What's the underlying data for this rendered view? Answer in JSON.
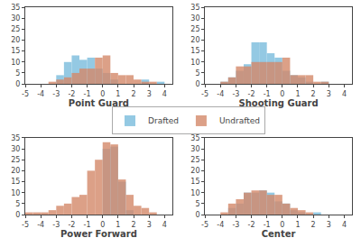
{
  "chart_data": [
    {
      "type": "histogram",
      "xlabel": "Point Guard",
      "bins": [
        -5.0,
        -4.5,
        -4.0,
        -3.5,
        -3.0,
        -2.5,
        -2.0,
        -1.5,
        -1.0,
        -0.5,
        0.0,
        0.5,
        1.0,
        1.5,
        2.0,
        2.5,
        3.0,
        3.5,
        4.0,
        4.5
      ],
      "series": [
        {
          "name": "Drafted",
          "color": "#89c4e1",
          "values": [
            0,
            0,
            0,
            0,
            4,
            10,
            13,
            11,
            12,
            7,
            5,
            2,
            0,
            0,
            0,
            2,
            0,
            1,
            0
          ]
        },
        {
          "name": "Undrafted",
          "color": "#d4896a",
          "values": [
            0,
            0,
            0,
            1,
            2,
            3,
            5,
            7,
            7,
            12,
            13,
            5,
            4,
            4,
            2,
            1,
            1,
            0,
            0
          ]
        }
      ],
      "xlim": [
        -5,
        4.5
      ],
      "ylim": [
        0,
        35
      ],
      "xticks": [
        -5,
        -4,
        -3,
        -2,
        -1,
        0,
        1,
        2,
        3,
        4
      ],
      "yticks": [
        0,
        5,
        10,
        15,
        20,
        25,
        30,
        35
      ],
      "grid": false,
      "legend": "center"
    },
    {
      "type": "histogram",
      "xlabel": "Shooting Guard",
      "bins": [
        -5.0,
        -4.5,
        -4.0,
        -3.5,
        -3.0,
        -2.5,
        -2.0,
        -1.5,
        -1.0,
        -0.5,
        0.0,
        0.5,
        1.0,
        1.5,
        2.0,
        2.5,
        3.0
      ],
      "series": [
        {
          "name": "Drafted",
          "color": "#89c4e1",
          "values": [
            0,
            0,
            1,
            3,
            6,
            9,
            19,
            19,
            14,
            12,
            6,
            4,
            3,
            1,
            0,
            1
          ]
        },
        {
          "name": "Undrafted",
          "color": "#d4896a",
          "values": [
            0,
            0,
            1,
            3,
            8,
            8,
            10,
            10,
            10,
            10,
            12,
            4,
            4,
            4,
            1,
            1
          ]
        }
      ],
      "xlim": [
        -5,
        4.5
      ],
      "ylim": [
        0,
        35
      ],
      "xticks": [
        -5,
        -4,
        -3,
        -2,
        -1,
        0,
        1,
        2,
        3,
        4
      ],
      "yticks": [
        0,
        5,
        10,
        15,
        20,
        25,
        30,
        35
      ],
      "grid": false
    },
    {
      "type": "histogram",
      "xlabel": "Power Forward",
      "bins": [
        -5.0,
        -4.5,
        -4.0,
        -3.5,
        -3.0,
        -2.5,
        -2.0,
        -1.5,
        -1.0,
        -0.5,
        0.0,
        0.5,
        1.0,
        1.5,
        2.0,
        2.5,
        3.0,
        3.5,
        4.0,
        4.5
      ],
      "series": [
        {
          "name": "Drafted",
          "color": "#89c4e1",
          "values": [
            0,
            0,
            0,
            0,
            0,
            0,
            0,
            0,
            0,
            0,
            30,
            31,
            15,
            2,
            0,
            0,
            0,
            0,
            0
          ]
        },
        {
          "name": "Undrafted",
          "color": "#d4896a",
          "values": [
            1,
            1,
            1,
            2,
            4,
            5,
            8,
            9,
            20,
            25,
            33,
            32,
            16,
            9,
            4,
            3,
            1,
            0,
            0
          ]
        }
      ],
      "xlim": [
        -5,
        4.5
      ],
      "ylim": [
        0,
        35
      ],
      "xticks": [
        -5,
        -4,
        -3,
        -2,
        -1,
        0,
        1,
        2,
        3,
        4
      ],
      "yticks": [
        0,
        5,
        10,
        15,
        20,
        25,
        30,
        35
      ],
      "grid": false
    },
    {
      "type": "histogram",
      "xlabel": "Center",
      "bins": [
        -5.0,
        -4.5,
        -4.0,
        -3.5,
        -3.0,
        -2.5,
        -2.0,
        -1.5,
        -1.0,
        -0.5,
        0.0,
        0.5,
        1.0,
        1.5,
        2.0,
        2.5
      ],
      "series": [
        {
          "name": "Drafted",
          "color": "#89c4e1",
          "values": [
            0,
            0,
            0,
            3,
            5,
            10,
            10,
            11,
            10,
            6,
            5,
            2,
            1,
            0,
            1
          ]
        },
        {
          "name": "Undrafted",
          "color": "#d4896a",
          "values": [
            0,
            0,
            1,
            5,
            7,
            10,
            11,
            11,
            9,
            9,
            5,
            3,
            2,
            1,
            0
          ]
        }
      ],
      "xlim": [
        -5,
        4.5
      ],
      "ylim": [
        0,
        35
      ],
      "xticks": [
        -5,
        -4,
        -3,
        -2,
        -1,
        0,
        1,
        2,
        3,
        4
      ],
      "yticks": [
        0,
        5,
        10,
        15,
        20,
        25,
        30,
        35
      ],
      "grid": false
    }
  ]
}
